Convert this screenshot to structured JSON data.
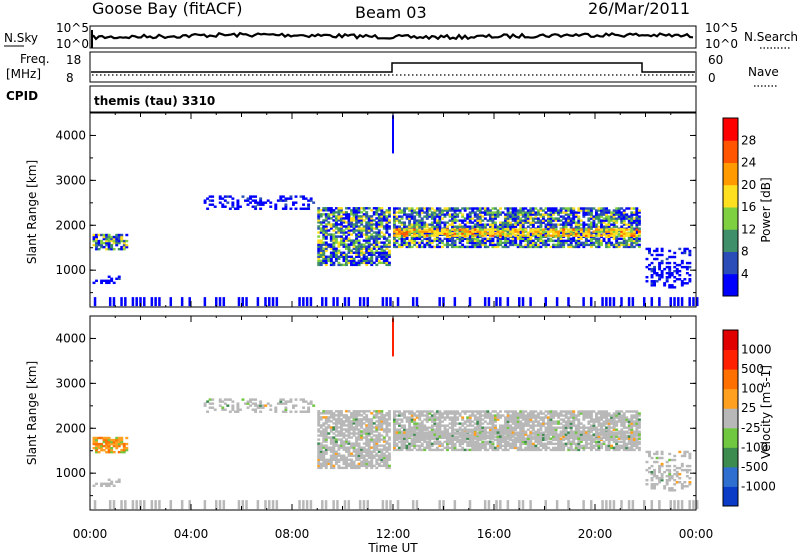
{
  "header": {
    "station": "Goose Bay (fitACF)",
    "beam": "Beam 03",
    "date": "26/Mar/2011"
  },
  "status_panels": {
    "noise_left_label": "N.Sky",
    "noise_left_ticks": [
      "10^5",
      "10^0"
    ],
    "noise_right_label": "N.Search",
    "noise_right_ticks": [
      "10^5",
      "10^0"
    ],
    "freq_label_1": "Freq.",
    "freq_label_2": "[MHz]",
    "freq_ticks": [
      "18",
      "8"
    ],
    "nave_label": "Nave",
    "nave_ticks": [
      "60",
      "0"
    ],
    "cpid_label": "CPID",
    "cpid_value": "themis (tau) 3310"
  },
  "chart_data": [
    {
      "type": "heatmap",
      "quantity": "power",
      "ylabel": "Slant Range [km]",
      "xlabel": "",
      "ylim": [
        180,
        4500
      ],
      "xlim_hours": [
        0,
        24
      ],
      "yticks": [
        "1000",
        "2000",
        "3000",
        "4000"
      ],
      "colorbar_label": "Power [dB]",
      "colorbar_ticks": [
        "4",
        "8",
        "12",
        "16",
        "20",
        "24",
        "28"
      ],
      "colorbar_colors": [
        "#0000ff",
        "#2a4db8",
        "#3f8f6a",
        "#7fd040",
        "#ffe020",
        "#ff9a00",
        "#ff5500",
        "#ff0000"
      ],
      "regions_hours_km": [
        {
          "t": [
            0.1,
            1.5
          ],
          "r": [
            1450,
            1800
          ],
          "level": "mixed"
        },
        {
          "t": [
            0.1,
            1.2
          ],
          "r": [
            700,
            850
          ],
          "level": "low"
        },
        {
          "t": [
            4.5,
            8.8
          ],
          "r": [
            2350,
            2650
          ],
          "level": "low"
        },
        {
          "t": [
            9.0,
            11.8
          ],
          "r": [
            1100,
            2400
          ],
          "level": "mixed"
        },
        {
          "t": [
            12.0,
            21.8
          ],
          "r": [
            1500,
            2400
          ],
          "level": "mixed"
        },
        {
          "t": [
            12.0,
            21.8
          ],
          "r": [
            1750,
            1900
          ],
          "level": "high"
        },
        {
          "t": [
            22.0,
            23.8
          ],
          "r": [
            600,
            1500
          ],
          "level": "low"
        }
      ]
    },
    {
      "type": "heatmap",
      "quantity": "velocity",
      "ylabel": "Slant Range [km]",
      "xlabel": "Time UT",
      "ylim": [
        180,
        4500
      ],
      "xlim_hours": [
        0,
        24
      ],
      "xticks": [
        "00:00",
        "04:00",
        "08:00",
        "12:00",
        "16:00",
        "20:00",
        "00:00"
      ],
      "yticks": [
        "1000",
        "2000",
        "3000",
        "4000"
      ],
      "colorbar_label": "Velocity [m s-1]",
      "colorbar_ticks": [
        "1000",
        "500",
        "100",
        "25",
        "-25",
        "-100",
        "-500",
        "-1000"
      ],
      "colorbar_colors": [
        "#0a3cc8",
        "#2e6fd0",
        "#3c8c50",
        "#70c840",
        "#b8b8b8",
        "#ffa020",
        "#ff7000",
        "#ff2000",
        "#e00000"
      ]
    }
  ]
}
